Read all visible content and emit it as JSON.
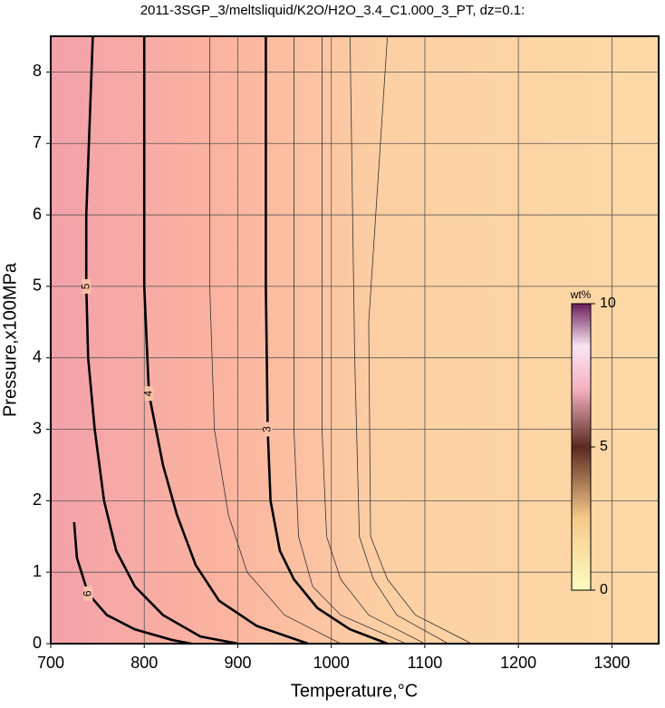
{
  "chart_data": {
    "type": "contour",
    "title": "2011-3SGP_3/meltsliquid/K2O/H2O_3.4_C1.000_3_PT, dz=0.1:",
    "x_label": "Temperature,°C",
    "y_label": "Pressure,x100MPa",
    "xlim": [
      700,
      1350
    ],
    "ylim": [
      0,
      8.5
    ],
    "xticks": [
      700,
      800,
      900,
      1000,
      1100,
      1200,
      1300
    ],
    "yticks": [
      0,
      1,
      2,
      3,
      4,
      5,
      6,
      7,
      8
    ],
    "grid": true,
    "series": [
      {
        "name": "3",
        "color": "#000000",
        "x": [
          930,
          930,
          932,
          935,
          945,
          960,
          985,
          1020,
          1060
        ],
        "values": [
          8.5,
          5,
          3,
          2,
          1.3,
          0.9,
          0.5,
          0.2,
          0
        ]
      },
      {
        "name": "4",
        "color": "#000000",
        "x": [
          800,
          800,
          805,
          820,
          835,
          855,
          880,
          920,
          975
        ],
        "values": [
          8.5,
          5,
          3.5,
          2.5,
          1.8,
          1.1,
          0.6,
          0.25,
          0
        ]
      },
      {
        "name": "5",
        "color": "#000000",
        "x": [
          745,
          738,
          738,
          740,
          747,
          757,
          770,
          790,
          820,
          860,
          900
        ],
        "values": [
          8.5,
          6,
          5,
          4,
          3,
          2,
          1.3,
          0.8,
          0.4,
          0.1,
          0
        ]
      },
      {
        "name": "6",
        "color": "#000000",
        "x": [
          725,
          728,
          740,
          760,
          790,
          830,
          850
        ],
        "values": [
          1.7,
          1.2,
          0.7,
          0.4,
          0.2,
          0.05,
          0
        ]
      },
      {
        "color": "#333333",
        "x": [
          870,
          870,
          875,
          890,
          910,
          950,
          1010
        ],
        "values": [
          8.5,
          5,
          3,
          1.8,
          1,
          0.4,
          0
        ]
      },
      {
        "color": "#333333",
        "x": [
          960,
          960,
          965,
          980,
          1010,
          1080
        ],
        "values": [
          8.5,
          3,
          1.5,
          0.8,
          0.4,
          0
        ]
      },
      {
        "color": "#333333",
        "x": [
          990,
          990,
          995,
          1010,
          1040,
          1100
        ],
        "values": [
          8.5,
          3,
          1.5,
          0.9,
          0.4,
          0
        ]
      },
      {
        "color": "#333333",
        "x": [
          1020,
          1025,
          1030,
          1045,
          1070,
          1125
        ],
        "values": [
          8.5,
          4,
          1.5,
          0.9,
          0.4,
          0
        ]
      },
      {
        "color": "#333333",
        "x": [
          1060,
          1040,
          1042,
          1060,
          1090,
          1150
        ],
        "values": [
          8.5,
          4.5,
          1.5,
          0.9,
          0.4,
          0
        ]
      }
    ],
    "colorbar": {
      "label": "wt%",
      "lim": [
        0,
        10
      ],
      "ticks": [
        0,
        5,
        10
      ]
    }
  }
}
